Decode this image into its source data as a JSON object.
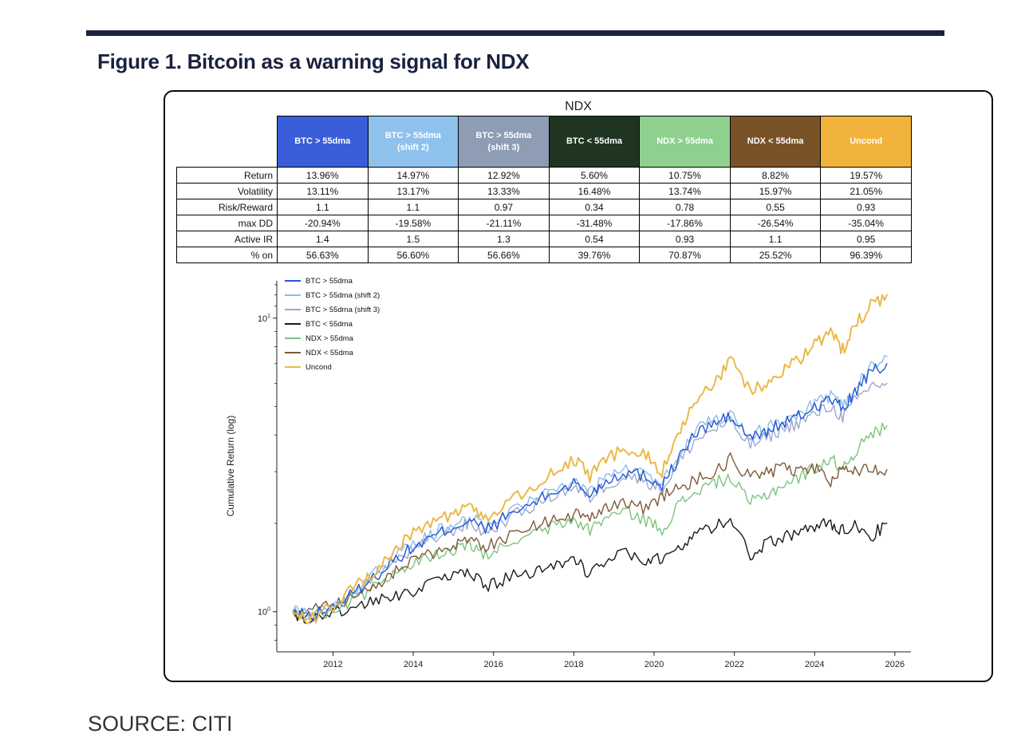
{
  "page": {
    "title": "Figure 1. Bitcoin as a warning signal for NDX",
    "source": "SOURCE: CITI"
  },
  "figure": {
    "chart_title": "NDX",
    "table": {
      "row_headers": [
        "Return",
        "Volatility",
        "Risk/Reward",
        "max DD",
        "Active IR",
        "% on"
      ],
      "columns": [
        {
          "label": "BTC > 55dma",
          "sub": "",
          "color": "#3a5dd9",
          "values": [
            "13.96%",
            "13.11%",
            "1.1",
            "-20.94%",
            "1.4",
            "56.63%"
          ]
        },
        {
          "label": "BTC > 55dma",
          "sub": "(shift 2)",
          "color": "#8ec2ec",
          "values": [
            "14.97%",
            "13.17%",
            "1.1",
            "-19.58%",
            "1.5",
            "56.60%"
          ]
        },
        {
          "label": "BTC > 55dma",
          "sub": "(shift 3)",
          "color": "#8e9cb4",
          "values": [
            "12.92%",
            "13.33%",
            "0.97",
            "-21.11%",
            "1.3",
            "56.66%"
          ]
        },
        {
          "label": "BTC < 55dma",
          "sub": "",
          "color": "#1f3522",
          "values": [
            "5.60%",
            "16.48%",
            "0.34",
            "-31.48%",
            "0.54",
            "39.76%"
          ]
        },
        {
          "label": "NDX > 55dma",
          "sub": "",
          "color": "#8fd08f",
          "values": [
            "10.75%",
            "13.74%",
            "0.78",
            "-17.86%",
            "0.93",
            "70.87%"
          ]
        },
        {
          "label": "NDX < 55dma",
          "sub": "",
          "color": "#7a5228",
          "values": [
            "8.82%",
            "15.97%",
            "0.55",
            "-26.54%",
            "1.1",
            "25.52%"
          ]
        },
        {
          "label": "Uncond",
          "sub": "",
          "color": "#f2b33d",
          "values": [
            "19.57%",
            "21.05%",
            "0.93",
            "-35.04%",
            "0.95",
            "96.39%"
          ]
        }
      ]
    }
  },
  "chart_data": {
    "type": "line",
    "title": "NDX",
    "xlabel": "",
    "ylabel": "Cumulative Return (log)",
    "y_scale": "log",
    "grid": false,
    "legend_position": "upper-left",
    "xlim": [
      2010.6,
      2026.4
    ],
    "ylim": [
      0.73,
      13.4
    ],
    "x_ticks": [
      2012,
      2014,
      2016,
      2018,
      2020,
      2022,
      2024,
      2026
    ],
    "y_ticks": [
      1,
      10
    ],
    "x": [
      2011,
      2011.4,
      2012,
      2012.5,
      2013,
      2013.5,
      2014,
      2014.5,
      2015,
      2015.4,
      2015.8,
      2016.3,
      2017,
      2017.5,
      2018,
      2018.4,
      2018.8,
      2019.3,
      2019.8,
      2020.2,
      2020.6,
      2021,
      2021.5,
      2021.9,
      2022.4,
      2022.8,
      2023.2,
      2023.6,
      2024,
      2024.4,
      2024.7,
      2025,
      2025.4,
      2025.8
    ],
    "series": [
      {
        "name": "BTC > 55dma",
        "color": "#2457d6",
        "values": [
          1.0,
          0.96,
          1.04,
          1.15,
          1.3,
          1.5,
          1.65,
          1.8,
          1.95,
          2.05,
          1.9,
          2.1,
          2.35,
          2.55,
          2.75,
          2.5,
          2.8,
          3.0,
          2.9,
          2.7,
          3.3,
          4.0,
          4.4,
          4.6,
          3.9,
          4.1,
          4.4,
          4.6,
          5.0,
          5.3,
          4.9,
          5.6,
          6.5,
          7.0
        ]
      },
      {
        "name": "BTC > 55dma (shift 2)",
        "color": "#8bbce8",
        "values": [
          1.0,
          0.97,
          1.05,
          1.17,
          1.33,
          1.53,
          1.7,
          1.85,
          2.0,
          2.1,
          1.95,
          2.15,
          2.4,
          2.6,
          2.8,
          2.55,
          2.85,
          3.05,
          2.95,
          2.75,
          3.4,
          4.1,
          4.5,
          4.7,
          4.0,
          4.2,
          4.5,
          4.7,
          5.1,
          5.4,
          5.0,
          5.8,
          6.8,
          7.4
        ]
      },
      {
        "name": "BTC > 55dma (shift 3)",
        "color": "#9aa8cc",
        "values": [
          1.0,
          0.96,
          1.03,
          1.14,
          1.28,
          1.47,
          1.62,
          1.77,
          1.9,
          2.0,
          1.85,
          2.05,
          2.3,
          2.5,
          2.65,
          2.45,
          2.7,
          2.9,
          2.8,
          2.6,
          3.2,
          3.8,
          4.2,
          4.4,
          3.7,
          3.9,
          4.2,
          4.4,
          4.7,
          5.0,
          4.6,
          5.2,
          5.9,
          6.0
        ]
      },
      {
        "name": "BTC < 55dma",
        "color": "#1a1a1a",
        "values": [
          1.0,
          0.93,
          1.0,
          1.03,
          1.08,
          1.12,
          1.18,
          1.25,
          1.32,
          1.35,
          1.22,
          1.3,
          1.38,
          1.45,
          1.5,
          1.35,
          1.52,
          1.58,
          1.45,
          1.52,
          1.68,
          1.8,
          1.95,
          2.1,
          1.55,
          1.7,
          1.8,
          1.85,
          1.95,
          2.0,
          1.9,
          2.0,
          1.8,
          2.0
        ]
      },
      {
        "name": "NDX > 55dma",
        "color": "#7cc47c",
        "values": [
          1.0,
          0.95,
          1.02,
          1.1,
          1.2,
          1.32,
          1.45,
          1.55,
          1.62,
          1.68,
          1.55,
          1.68,
          1.85,
          1.95,
          2.05,
          1.9,
          2.1,
          2.2,
          2.05,
          1.9,
          2.3,
          2.55,
          2.75,
          2.85,
          2.35,
          2.5,
          2.7,
          2.85,
          3.1,
          3.3,
          3.1,
          3.5,
          4.0,
          4.3
        ]
      },
      {
        "name": "NDX < 55dma",
        "color": "#7d5a3c",
        "values": [
          1.0,
          1.0,
          1.05,
          1.12,
          1.22,
          1.35,
          1.48,
          1.58,
          1.68,
          1.75,
          1.68,
          1.78,
          1.95,
          2.05,
          2.15,
          2.05,
          2.25,
          2.35,
          2.25,
          2.45,
          2.65,
          2.8,
          3.0,
          3.3,
          2.85,
          3.0,
          3.05,
          3.05,
          3.1,
          2.7,
          3.05,
          3.05,
          3.05,
          3.05
        ]
      },
      {
        "name": "Uncond",
        "color": "#ecb84a",
        "values": [
          1.0,
          0.93,
          1.05,
          1.2,
          1.35,
          1.6,
          1.85,
          2.05,
          2.15,
          2.3,
          2.05,
          2.35,
          2.7,
          3.0,
          3.3,
          2.9,
          3.3,
          3.6,
          3.4,
          3.0,
          4.0,
          5.1,
          6.0,
          7.2,
          5.6,
          6.0,
          6.6,
          7.2,
          8.1,
          8.9,
          7.8,
          9.5,
          11.0,
          12.0
        ]
      }
    ]
  }
}
